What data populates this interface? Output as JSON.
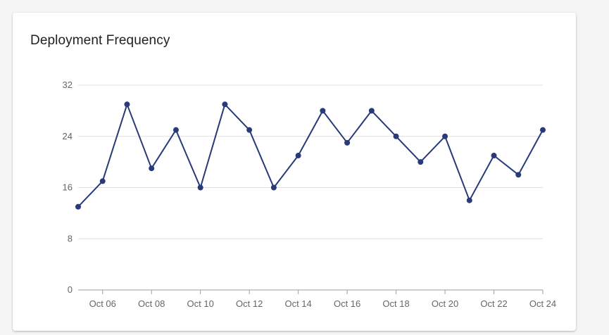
{
  "card": {
    "title": "Deployment Frequency"
  },
  "colors": {
    "line": "#283a7a",
    "grid": "#e0e0e0",
    "axis": "#9e9e9e",
    "tick_text": "#666666",
    "background": "#ffffff"
  },
  "chart_data": {
    "type": "line",
    "title": "Deployment Frequency",
    "xlabel": "",
    "ylabel": "",
    "x": [
      "Oct 05",
      "Oct 06",
      "Oct 07",
      "Oct 08",
      "Oct 09",
      "Oct 10",
      "Oct 11",
      "Oct 12",
      "Oct 13",
      "Oct 14",
      "Oct 15",
      "Oct 16",
      "Oct 17",
      "Oct 18",
      "Oct 19",
      "Oct 20",
      "Oct 21",
      "Oct 22",
      "Oct 23",
      "Oct 24"
    ],
    "x_tick_labels": [
      "Oct 06",
      "Oct 08",
      "Oct 10",
      "Oct 12",
      "Oct 14",
      "Oct 16",
      "Oct 18",
      "Oct 20",
      "Oct 22",
      "Oct 24"
    ],
    "y_ticks": [
      0,
      8,
      16,
      24,
      32
    ],
    "ylim": [
      0,
      32
    ],
    "grid": true,
    "legend": "none",
    "series": [
      {
        "values": [
          13,
          17,
          29,
          19,
          25,
          16,
          29,
          25,
          16,
          21,
          28,
          23,
          28,
          24,
          20,
          24,
          14,
          21,
          18,
          25
        ]
      }
    ]
  }
}
